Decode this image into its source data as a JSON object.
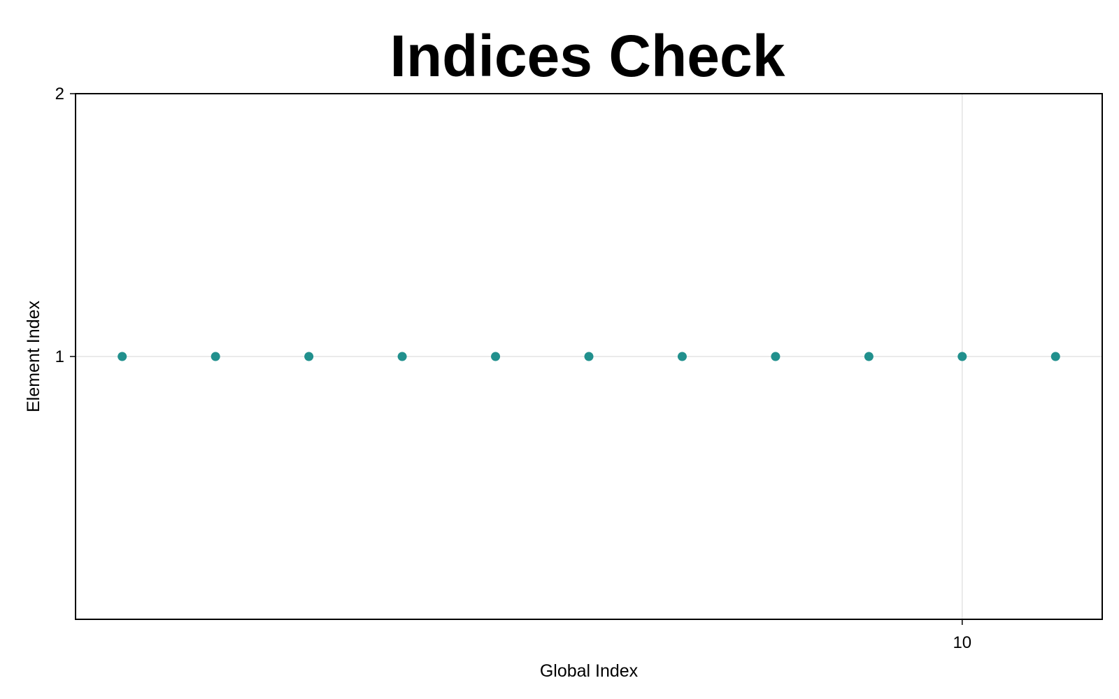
{
  "chart_data": {
    "type": "scatter",
    "title": "Indices Check",
    "xlabel": "Global Index",
    "ylabel": "Element Index",
    "xlim": [
      0.5,
      11.5
    ],
    "ylim": [
      0,
      2
    ],
    "xticks": [
      10
    ],
    "yticks": [
      1,
      2
    ],
    "grid": true,
    "legend": "none",
    "series": [
      {
        "name": "indices",
        "color": "#21908d",
        "x": [
          1,
          2,
          3,
          4,
          5,
          6,
          7,
          8,
          9,
          10,
          11
        ],
        "y": [
          1,
          1,
          1,
          1,
          1,
          1,
          1,
          1,
          1,
          1,
          1
        ]
      }
    ]
  },
  "colors": {
    "marker": "#21908d",
    "grid": "#e3e3e3",
    "frame": "#000000"
  }
}
